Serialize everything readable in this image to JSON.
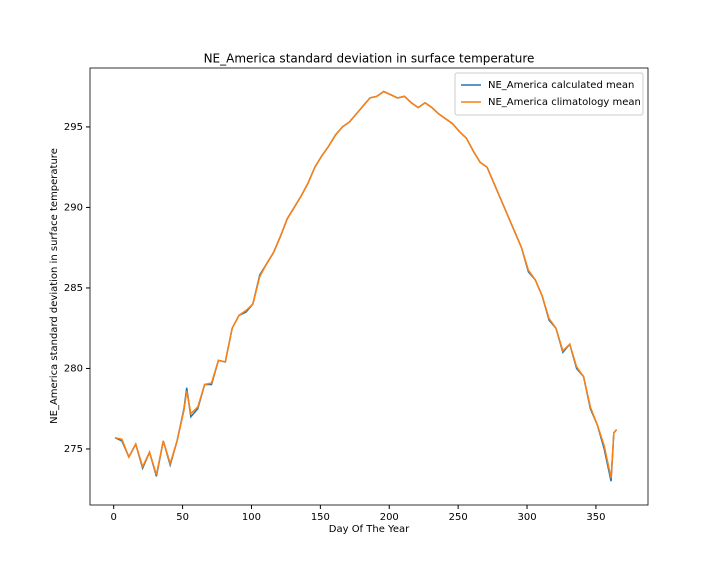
{
  "chart_data": {
    "type": "line",
    "title": "NE_America standard deviation in surface temperature",
    "xlabel": "Day Of The Year",
    "ylabel": "NE_America standard deviation in surface temperature",
    "x": [
      1,
      6,
      11,
      16,
      21,
      26,
      31,
      36,
      41,
      46,
      51,
      53,
      56,
      61,
      66,
      71,
      76,
      81,
      86,
      91,
      96,
      101,
      106,
      111,
      116,
      121,
      126,
      131,
      136,
      141,
      146,
      151,
      156,
      161,
      166,
      171,
      176,
      181,
      186,
      191,
      196,
      201,
      206,
      211,
      216,
      221,
      226,
      231,
      236,
      241,
      246,
      251,
      256,
      261,
      266,
      271,
      276,
      281,
      286,
      291,
      296,
      301,
      306,
      311,
      316,
      321,
      326,
      331,
      336,
      341,
      346,
      351,
      356,
      361,
      363,
      365
    ],
    "series": [
      {
        "name": "NE_America calculated mean",
        "color": "#1f77b4",
        "values": [
          275.7,
          275.5,
          274.5,
          275.3,
          273.8,
          274.8,
          273.3,
          275.5,
          274.0,
          275.5,
          277.5,
          278.8,
          277.0,
          277.5,
          279.0,
          279.0,
          280.5,
          280.4,
          282.5,
          283.3,
          283.5,
          284.0,
          285.8,
          286.5,
          287.2,
          288.2,
          289.3,
          290.0,
          290.7,
          291.5,
          292.5,
          293.2,
          293.8,
          294.5,
          295.0,
          295.3,
          295.8,
          296.3,
          296.8,
          296.9,
          297.2,
          297.0,
          296.8,
          296.9,
          296.5,
          296.2,
          296.5,
          296.2,
          295.8,
          295.5,
          295.2,
          294.7,
          294.3,
          293.5,
          292.8,
          292.5,
          291.5,
          290.5,
          289.5,
          288.5,
          287.5,
          286.0,
          285.5,
          284.5,
          283.0,
          282.5,
          281.0,
          281.5,
          280.0,
          279.5,
          277.5,
          276.5,
          275.0,
          273.0,
          276.0,
          276.2
        ]
      },
      {
        "name": "NE_America climatology mean",
        "color": "#ff7f0e",
        "values": [
          275.7,
          275.6,
          274.5,
          275.3,
          273.9,
          274.8,
          273.4,
          275.5,
          274.1,
          275.5,
          277.4,
          278.6,
          277.2,
          277.6,
          279.0,
          279.1,
          280.5,
          280.4,
          282.5,
          283.3,
          283.6,
          284.0,
          285.7,
          286.5,
          287.2,
          288.2,
          289.3,
          290.0,
          290.7,
          291.5,
          292.5,
          293.2,
          293.8,
          294.5,
          295.0,
          295.3,
          295.8,
          296.3,
          296.8,
          296.9,
          297.2,
          297.0,
          296.8,
          296.9,
          296.5,
          296.2,
          296.5,
          296.2,
          295.8,
          295.5,
          295.2,
          294.7,
          294.3,
          293.5,
          292.8,
          292.5,
          291.5,
          290.5,
          289.5,
          288.5,
          287.5,
          286.1,
          285.5,
          284.5,
          283.1,
          282.5,
          281.1,
          281.5,
          280.1,
          279.5,
          277.6,
          276.5,
          275.2,
          273.2,
          276.0,
          276.2
        ]
      }
    ],
    "xlim": [
      -17.2,
      387.8
    ],
    "xticks": [
      0,
      50,
      100,
      150,
      200,
      250,
      300,
      350
    ],
    "ylim": [
      271.52,
      298.66
    ],
    "yticks": [
      275,
      280,
      285,
      290,
      295
    ],
    "legend": "upper right"
  }
}
